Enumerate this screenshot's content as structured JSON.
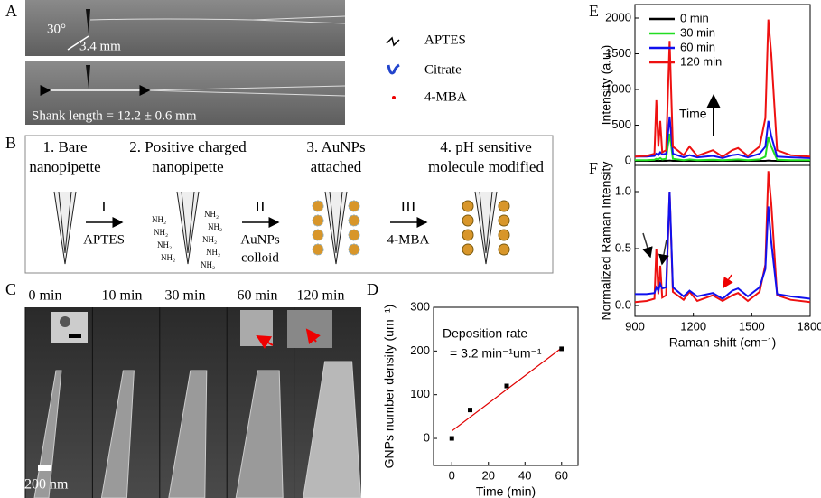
{
  "panel_labels": [
    "A",
    "B",
    "C",
    "D",
    "E",
    "F"
  ],
  "panel_a": {
    "angle": "30°",
    "length": "3.4 mm",
    "shank_length": "Shank length = 12.2 ± 0.6 mm",
    "legend": [
      "APTES",
      "Citrate",
      "4-MBA"
    ]
  },
  "panel_b": {
    "steps": [
      [
        "1. Bare",
        "nanopipette"
      ],
      [
        "2. Positive charged",
        "nanopipette"
      ],
      [
        "3. AuNPs",
        "attached"
      ],
      [
        "4. pH sensitive",
        "molecule modified"
      ]
    ],
    "arrows": [
      {
        "numeral": "I",
        "reagent": [
          "APTES"
        ]
      },
      {
        "numeral": "II",
        "reagent": [
          "AuNPs",
          "colloid"
        ]
      },
      {
        "numeral": "III",
        "reagent": [
          "4-MBA"
        ]
      }
    ],
    "amine": "NH₂"
  },
  "panel_c": {
    "times": [
      "0 min",
      "10 min",
      "30 min",
      "60 min",
      "120 min"
    ],
    "scale": "200 nm"
  },
  "chart_data": [
    {
      "type": "scatter",
      "x": [
        0,
        10,
        30,
        60
      ],
      "values": [
        0,
        65,
        120,
        205
      ],
      "color": "#000000",
      "fit": {
        "x": [
          0,
          60
        ],
        "values": [
          17,
          207
        ],
        "color": "#e00000"
      },
      "xlim": [
        -10,
        69
      ],
      "ylim": [
        -62,
        300
      ],
      "xticks": [
        0,
        20,
        40,
        60
      ],
      "yticks": [
        0,
        100,
        200,
        300
      ],
      "xlabel": "Time (min)",
      "ylabel": "GNPs number density (um⁻¹)",
      "annotations": [
        "Deposition rate",
        "= 3.2 min⁻¹um⁻¹"
      ]
    },
    {
      "type": "line",
      "x": [
        900,
        960,
        1000,
        1010,
        1020,
        1030,
        1040,
        1060,
        1078,
        1095,
        1150,
        1180,
        1220,
        1300,
        1350,
        1400,
        1430,
        1480,
        1540,
        1570,
        1585,
        1600,
        1630,
        1700,
        1800
      ],
      "series": [
        {
          "name": "0 min",
          "color": "#000000",
          "values": [
            0,
            0,
            0,
            0,
            0,
            0,
            0,
            0,
            5,
            0,
            0,
            0,
            0,
            0,
            0,
            0,
            0,
            0,
            0,
            0,
            5,
            2,
            0,
            0,
            0
          ]
        },
        {
          "name": "30 min",
          "color": "#22dd22",
          "values": [
            10,
            10,
            15,
            30,
            20,
            40,
            20,
            30,
            380,
            30,
            10,
            20,
            10,
            15,
            10,
            15,
            20,
            10,
            20,
            60,
            330,
            200,
            15,
            10,
            10
          ]
        },
        {
          "name": "60 min",
          "color": "#1010ee",
          "values": [
            60,
            60,
            70,
            100,
            80,
            120,
            90,
            100,
            620,
            100,
            50,
            80,
            50,
            70,
            40,
            80,
            90,
            50,
            100,
            200,
            560,
            350,
            60,
            50,
            40
          ]
        },
        {
          "name": "120 min",
          "color": "#ee1111",
          "values": [
            60,
            70,
            100,
            850,
            200,
            560,
            120,
            150,
            1680,
            200,
            80,
            200,
            70,
            150,
            60,
            150,
            180,
            70,
            200,
            600,
            1980,
            1500,
            150,
            80,
            60
          ]
        }
      ],
      "xlim": [
        900,
        1800
      ],
      "ylim": [
        -63,
        2190
      ],
      "yticks": [
        0,
        500,
        1000,
        1500,
        2000
      ],
      "ylabel": "Intensity (a.u.)",
      "legend": "upper left",
      "annotations": [
        "Time"
      ]
    },
    {
      "type": "line",
      "x": [
        900,
        960,
        1000,
        1010,
        1020,
        1030,
        1040,
        1060,
        1078,
        1095,
        1150,
        1180,
        1220,
        1300,
        1350,
        1400,
        1430,
        1480,
        1540,
        1570,
        1585,
        1600,
        1630,
        1700,
        1800
      ],
      "series": [
        {
          "color": "#ee1111",
          "values": [
            0.03,
            0.04,
            0.06,
            0.5,
            0.1,
            0.35,
            0.07,
            0.09,
            1.0,
            0.12,
            0.05,
            0.12,
            0.04,
            0.09,
            0.04,
            0.09,
            0.11,
            0.04,
            0.12,
            0.36,
            1.18,
            0.9,
            0.09,
            0.05,
            0.03
          ]
        },
        {
          "color": "#1010ee",
          "values": [
            0.1,
            0.1,
            0.11,
            0.16,
            0.13,
            0.19,
            0.15,
            0.16,
            1.0,
            0.16,
            0.08,
            0.13,
            0.08,
            0.11,
            0.06,
            0.13,
            0.15,
            0.08,
            0.16,
            0.32,
            0.87,
            0.56,
            0.1,
            0.08,
            0.06
          ]
        }
      ],
      "xlim": [
        900,
        1800
      ],
      "ylim": [
        -0.095,
        1.23
      ],
      "xticks": [
        900,
        1200,
        1500,
        1800
      ],
      "yticks": [
        0.0,
        0.5,
        1.0
      ],
      "xlabel": "Raman shift (cm⁻¹)",
      "ylabel": "Normalized Raman Intensity"
    }
  ]
}
